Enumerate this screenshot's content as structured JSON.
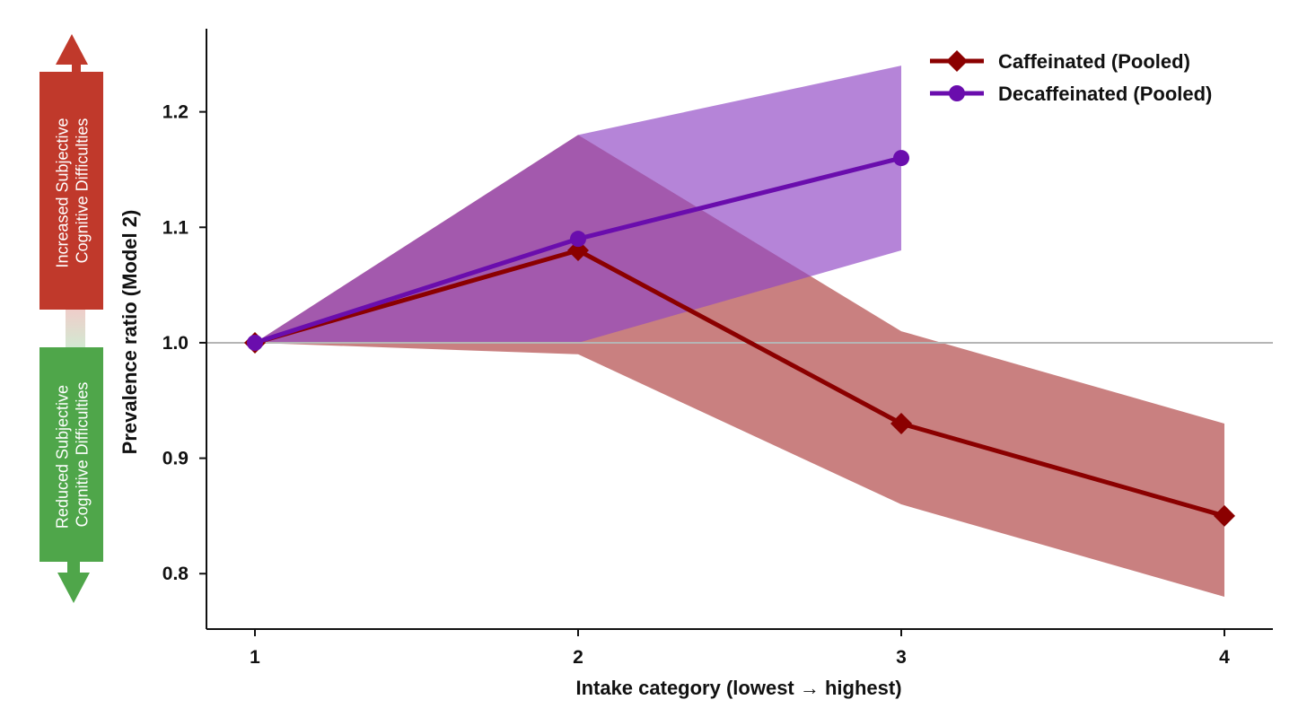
{
  "chart_data": {
    "type": "line",
    "xlabel": "Intake category (lowest → highest)",
    "ylabel": "Prevalence ratio (Model 2)",
    "x": [
      1,
      2,
      3,
      4
    ],
    "xlim": [
      0.85,
      4.15
    ],
    "ylim": [
      0.752,
      1.272
    ],
    "xticks": [
      "1",
      "2",
      "3",
      "4"
    ],
    "yticks": [
      "0.8",
      "0.9",
      "1.0",
      "1.1",
      "1.2"
    ],
    "reference_line": 1.0,
    "grid": false,
    "legend_position": "top-right",
    "series": [
      {
        "name": "Caffeinated (Pooled)",
        "x": [
          1,
          2,
          3,
          4
        ],
        "values": [
          1.0,
          1.08,
          0.93,
          0.85
        ],
        "lower": [
          1.0,
          0.99,
          0.86,
          0.78
        ],
        "upper": [
          1.0,
          1.18,
          1.01,
          0.93
        ],
        "color": "#8b0000",
        "band_color": "#a83232",
        "marker": "diamond"
      },
      {
        "name": "Decaffeinated (Pooled)",
        "x": [
          1,
          2,
          3
        ],
        "values": [
          1.0,
          1.09,
          1.16
        ],
        "lower": [
          1.0,
          1.0,
          1.08
        ],
        "upper": [
          1.0,
          1.18,
          1.24
        ],
        "color": "#6a0dad",
        "band_color": "#8e44c4",
        "marker": "circle"
      }
    ],
    "annotations": {
      "increased": "Increased Subjective Cognitive Difficulties",
      "increased_line1": "Increased Subjective",
      "increased_line2": "Cognitive Difficulties",
      "increased_color": "#c0392b",
      "reduced": "Reduced Subjective Cognitive Difficulties",
      "reduced_line1": "Reduced Subjective",
      "reduced_line2": "Cognitive Difficulties",
      "reduced_color": "#4fa64a"
    }
  }
}
